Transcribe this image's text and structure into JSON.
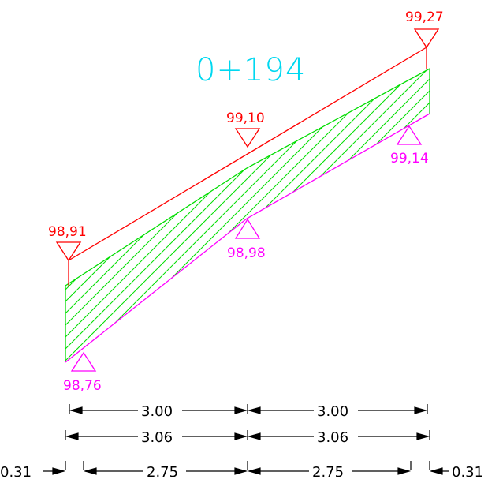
{
  "station": "0+194",
  "design_elevations": [
    "98,91",
    "99,10",
    "99,27"
  ],
  "ground_elevations": [
    "98,76",
    "98,98",
    "99,14"
  ],
  "dimensions": {
    "row1": [
      "3.00",
      "3.00"
    ],
    "row2": [
      "3.06",
      "3.06"
    ],
    "row3": [
      "0.31",
      "2.75",
      "2.75",
      "0.31"
    ]
  },
  "colors": {
    "design_line": "#ff0000",
    "ground_line": "#ff00ff",
    "hatch": "#00dd00",
    "station_label": "#00d8f0",
    "dimension": "#000000"
  }
}
